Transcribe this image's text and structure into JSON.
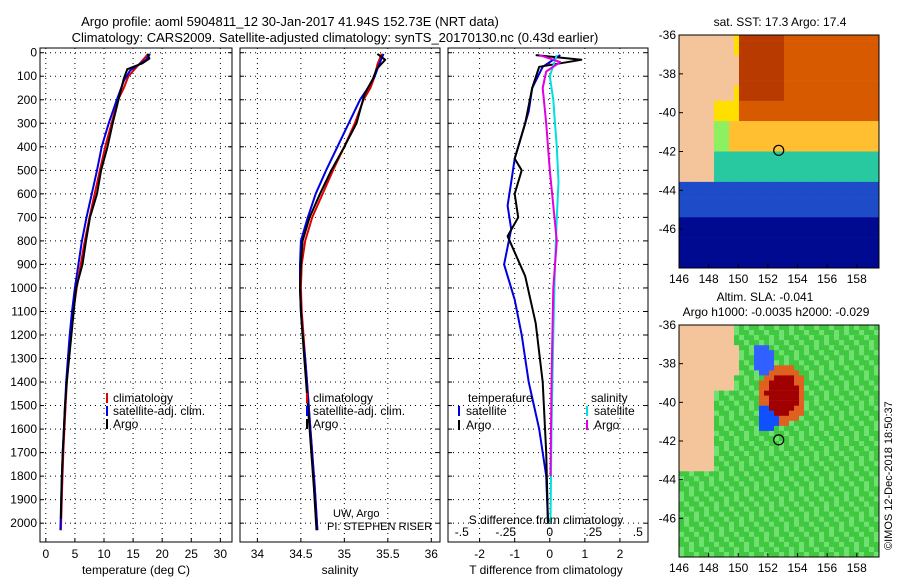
{
  "header": {
    "line1": "Argo profile: aoml 5904811_12 30-Jan-2017 41.94S 152.73E (NRT data)",
    "line2": "Climatology: CARS2009. Satellite-adjusted climatology: synTS_20170130.nc (0.43d earlier)"
  },
  "colors": {
    "climatology": "#e00000",
    "satellite": "#0000e0",
    "argo": "#000000",
    "sat_salinity": "#00e0e0",
    "argo_salinity": "#e000e0"
  },
  "chart_data": [
    {
      "type": "line",
      "id": "temperature",
      "xlabel": "temperature (deg C)",
      "xlim": [
        -1,
        32
      ],
      "ylim": [
        2080,
        -20
      ],
      "xticks": [
        0,
        5,
        10,
        15,
        20,
        25,
        30
      ],
      "yticks": [
        0,
        100,
        200,
        300,
        400,
        500,
        600,
        700,
        800,
        900,
        1000,
        1100,
        1200,
        1300,
        1400,
        1500,
        1600,
        1700,
        1800,
        1900,
        2000
      ],
      "grid": true,
      "legend_position": "lower-center",
      "series": [
        {
          "name": "climatology",
          "color": "#e00000",
          "x": [
            17.6,
            16,
            14.2,
            13.4,
            12.4,
            11.3,
            10.2,
            9.3,
            8.4,
            7.5,
            6.7,
            6.0,
            5.3,
            4.7,
            4.3,
            3.9,
            3.6,
            3.4,
            3.2,
            3.0,
            2.8,
            2.6
          ],
          "y": [
            5,
            50,
            100,
            150,
            200,
            300,
            400,
            500,
            600,
            700,
            800,
            900,
            1000,
            1100,
            1200,
            1300,
            1400,
            1500,
            1600,
            1700,
            1850,
            2030
          ]
        },
        {
          "name": "satellite-adj. clim.",
          "color": "#0000e0",
          "x": [
            17.9,
            17.2,
            14.5,
            13.4,
            12.2,
            10.8,
            9.6,
            8.8,
            7.9,
            7.0,
            6.2,
            5.6,
            5.0,
            4.5,
            4.1,
            3.8,
            3.5,
            3.3,
            3.1,
            2.9,
            2.7,
            2.5
          ],
          "y": [
            5,
            30,
            75,
            120,
            200,
            300,
            400,
            500,
            600,
            700,
            800,
            900,
            1000,
            1100,
            1200,
            1300,
            1400,
            1500,
            1600,
            1700,
            1850,
            2030
          ]
        },
        {
          "name": "Argo",
          "color": "#000000",
          "x": [
            17.5,
            17.8,
            16.6,
            14.0,
            13.4,
            12.5,
            11.5,
            10.6,
            9.5,
            8.8,
            7.6,
            6.9,
            6.3,
            5.2,
            4.8,
            4.4,
            4.0,
            3.6,
            3.3,
            3.1,
            2.9,
            2.7,
            2.6
          ],
          "y": [
            5,
            25,
            45,
            70,
            110,
            200,
            300,
            400,
            500,
            600,
            700,
            800,
            900,
            1000,
            1100,
            1200,
            1300,
            1400,
            1500,
            1600,
            1700,
            1850,
            1980
          ]
        }
      ]
    },
    {
      "type": "line",
      "id": "salinity",
      "xlabel": "salinity",
      "xlim": [
        33.8,
        36.1
      ],
      "ylim": [
        2080,
        -20
      ],
      "xticks": [
        34,
        34.5,
        35,
        35.5,
        36
      ],
      "yticks": [
        0,
        100,
        200,
        300,
        400,
        500,
        600,
        700,
        800,
        900,
        1000,
        1100,
        1200,
        1300,
        1400,
        1500,
        1600,
        1700,
        1800,
        1900,
        2000
      ],
      "grid": true,
      "legend_position": "lower-center",
      "annotations": [
        "UW, Argo",
        "PI: STEPHEN RISER"
      ],
      "series": [
        {
          "name": "climatology",
          "color": "#e00000",
          "x": [
            35.43,
            35.38,
            35.35,
            35.3,
            35.22,
            35.12,
            35.0,
            34.87,
            34.75,
            34.63,
            34.55,
            34.51,
            34.5,
            34.51,
            34.53,
            34.55,
            34.57,
            34.59,
            34.61,
            34.63,
            34.66,
            34.69
          ],
          "y": [
            5,
            50,
            100,
            150,
            200,
            300,
            400,
            500,
            600,
            700,
            800,
            900,
            1000,
            1100,
            1200,
            1300,
            1400,
            1500,
            1600,
            1700,
            1850,
            2030
          ]
        },
        {
          "name": "satellite-adj. clim.",
          "color": "#0000e0",
          "x": [
            35.45,
            35.4,
            35.35,
            35.27,
            35.18,
            35.05,
            34.92,
            34.79,
            34.67,
            34.58,
            34.5,
            34.49,
            34.49,
            34.5,
            34.52,
            34.55,
            34.57,
            34.59,
            34.61,
            34.63,
            34.66,
            34.69
          ],
          "y": [
            5,
            50,
            100,
            150,
            200,
            300,
            400,
            500,
            600,
            700,
            800,
            900,
            1000,
            1100,
            1200,
            1300,
            1400,
            1500,
            1600,
            1700,
            1850,
            2030
          ]
        },
        {
          "name": "Argo",
          "color": "#000000",
          "x": [
            35.38,
            35.47,
            35.37,
            35.33,
            35.23,
            35.14,
            35.0,
            34.85,
            34.72,
            34.6,
            34.52,
            34.5,
            34.49,
            34.5,
            34.52,
            34.54,
            34.56,
            34.58,
            34.6,
            34.62,
            34.65,
            34.68
          ],
          "y": [
            5,
            30,
            70,
            110,
            180,
            300,
            400,
            500,
            600,
            700,
            800,
            900,
            1000,
            1100,
            1200,
            1300,
            1400,
            1500,
            1600,
            1700,
            1850,
            2030
          ]
        }
      ]
    },
    {
      "type": "line",
      "id": "difference",
      "xlabel": "T difference from climatology",
      "xlabel_top": "S difference from climatology",
      "xlim": [
        -2.9,
        2.8
      ],
      "ylim": [
        2080,
        -20
      ],
      "xticks": [
        -2,
        -1,
        0,
        1,
        2
      ],
      "xticks_top": [
        -0.5,
        -0.25,
        0,
        0.25,
        0.5
      ],
      "yticks": [
        0,
        100,
        200,
        300,
        400,
        500,
        600,
        700,
        800,
        900,
        1000,
        1100,
        1200,
        1300,
        1400,
        1500,
        1600,
        1700,
        1800,
        1900,
        2000
      ],
      "grid": true,
      "legend_position": "lower-center",
      "legend_groups": [
        {
          "title": "temperature",
          "items": [
            {
              "name": "satellite",
              "color": "#0000e0"
            },
            {
              "name": "Argo",
              "color": "#000000"
            }
          ]
        },
        {
          "title": "salinity",
          "items": [
            {
              "name": "satellite",
              "color": "#00e0e0"
            },
            {
              "name": "Argo",
              "color": "#e000e0"
            }
          ]
        }
      ],
      "series": [
        {
          "name": "temperature satellite",
          "color": "#0000e0",
          "x": [
            0.3,
            -0.2,
            -0.5,
            -0.6,
            -0.8,
            -1.0,
            -1.1,
            -1.2,
            -1.1,
            -1.3,
            -1.0,
            -0.8,
            -0.6,
            -0.3,
            -0.1,
            -0.05
          ],
          "y": [
            10,
            60,
            150,
            250,
            350,
            450,
            550,
            650,
            750,
            900,
            1050,
            1200,
            1400,
            1600,
            1800,
            2000
          ]
        },
        {
          "name": "temperature Argo",
          "color": "#000000",
          "x": [
            -0.4,
            0.9,
            -0.3,
            -0.5,
            -0.7,
            -1.0,
            -0.8,
            -1.0,
            -0.9,
            -1.2,
            -0.7,
            -0.4,
            -0.2,
            -0.1,
            -0.05
          ],
          "y": [
            10,
            30,
            60,
            150,
            300,
            450,
            500,
            600,
            700,
            780,
            950,
            1150,
            1400,
            1700,
            2000
          ]
        },
        {
          "name": "salinity satellite",
          "color": "#00e0e0",
          "x": [
            0.2,
            0.0,
            0.1,
            0.15,
            0.2,
            0.25,
            0.2,
            0.15,
            0.1,
            0.05,
            0.02
          ],
          "y": [
            10,
            100,
            200,
            300,
            400,
            550,
            700,
            900,
            1200,
            1600,
            2000
          ]
        },
        {
          "name": "salinity Argo",
          "color": "#e000e0",
          "x": [
            -0.3,
            0.3,
            -0.1,
            -0.2,
            -0.1,
            0.0,
            0.1,
            0.2,
            0.1,
            0.05,
            0.02
          ],
          "y": [
            10,
            40,
            80,
            150,
            300,
            500,
            650,
            800,
            1000,
            1400,
            1800
          ]
        }
      ]
    },
    {
      "type": "heatmap",
      "id": "sst-map",
      "title": "sat. SST: 17.3 Argo: 17.4",
      "xticks": [
        146,
        148,
        150,
        152,
        154,
        156,
        158
      ],
      "yticks": [
        -36,
        -38,
        -40,
        -42,
        -44,
        -46
      ],
      "xlim": [
        146,
        159.5
      ],
      "ylim": [
        -48,
        -36
      ],
      "float_position": [
        152.73,
        -41.94
      ]
    },
    {
      "type": "heatmap",
      "id": "sla-map",
      "title": "Altim. SLA: -0.041",
      "subtitle": "Argo h1000: -0.0035 h2000: -0.029",
      "xticks": [
        146,
        148,
        150,
        152,
        154,
        156,
        158
      ],
      "yticks": [
        -36,
        -38,
        -40,
        -42,
        -44,
        -46
      ],
      "xlim": [
        146,
        159.5
      ],
      "ylim": [
        -48,
        -36
      ],
      "float_position": [
        152.73,
        -41.94
      ]
    }
  ],
  "credit": "©IMOS 12-Dec-2018 18:50:37"
}
